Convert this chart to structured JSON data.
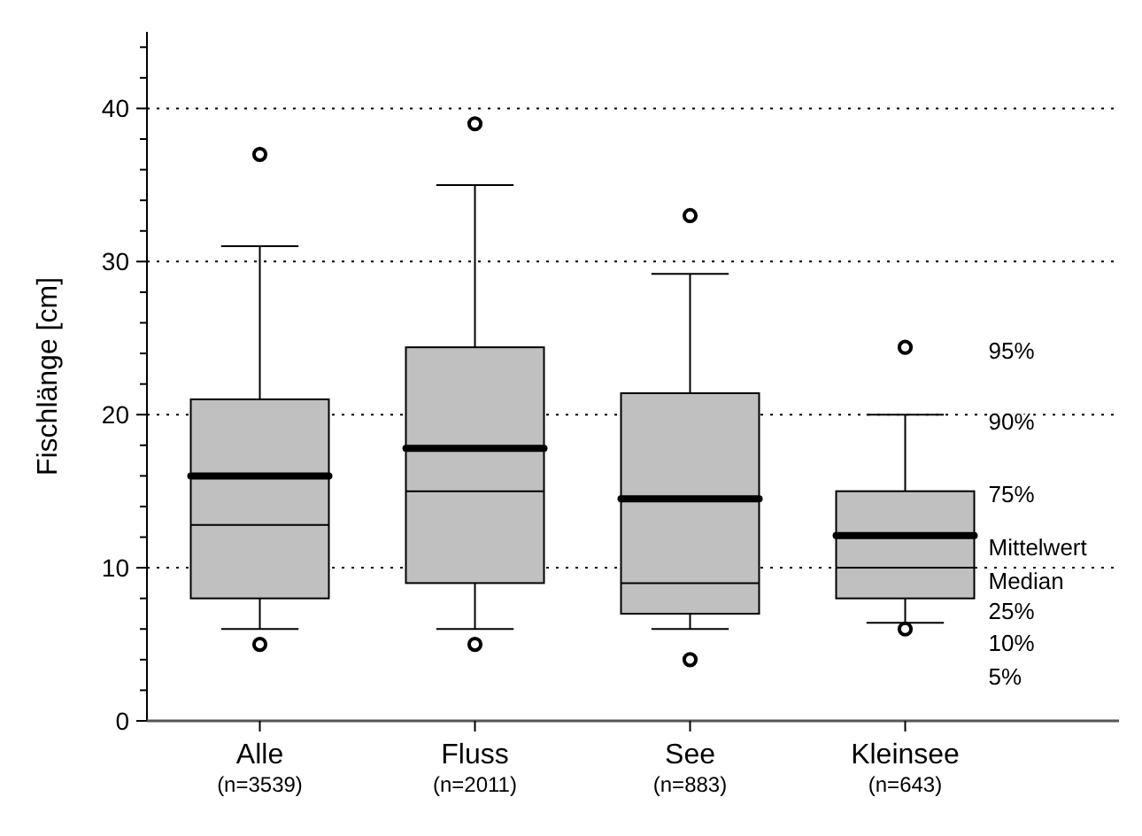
{
  "chart_data": {
    "type": "box",
    "ylabel": "Fischlänge [cm]",
    "categories": [
      "Alle\n(n=3539)",
      "Fluss\n(n=2011)",
      "See\n(n=883)",
      "Kleinsee\n(n=643)"
    ],
    "series": [
      {
        "color": "#c0c0c0",
        "boxes": [
          {
            "low": 6,
            "q1": 8,
            "median": 12.8,
            "q3": 21,
            "high": 31,
            "mean": 16,
            "outliers": [
              5,
              37
            ]
          },
          {
            "low": 6,
            "q1": 9,
            "median": 15,
            "q3": 24.4,
            "high": 35,
            "mean": 17.8,
            "outliers": [
              5,
              39
            ]
          },
          {
            "low": 6,
            "q1": 7,
            "median": 9,
            "q3": 21.4,
            "high": 29.2,
            "mean": 14.5,
            "outliers": [
              4,
              33
            ]
          },
          {
            "low": 6.4,
            "q1": 8,
            "median": 10,
            "q3": 15,
            "high": 20,
            "mean": 12.1,
            "outliers": [
              6,
              24.4
            ]
          }
        ]
      }
    ],
    "ylim": [
      0,
      45
    ],
    "yticks": [
      0,
      {
        "value": 2,
        "label": null
      },
      {
        "value": 4,
        "label": null
      },
      {
        "value": 6,
        "label": null
      },
      {
        "value": 8,
        "label": null
      },
      10,
      {
        "value": 12,
        "label": null
      },
      {
        "value": 14,
        "label": null
      },
      {
        "value": 16,
        "label": null
      },
      {
        "value": 18,
        "label": null
      },
      20,
      {
        "value": 22,
        "label": null
      },
      {
        "value": 24,
        "label": null
      },
      {
        "value": 26,
        "label": null
      },
      {
        "value": 28,
        "label": null
      },
      30,
      {
        "value": 32,
        "label": null
      },
      {
        "value": 34,
        "label": null
      },
      {
        "value": 36,
        "label": null
      },
      {
        "value": 38,
        "label": null
      },
      40,
      {
        "value": 42,
        "label": null
      },
      {
        "value": 44,
        "label": null
      }
    ],
    "grid": "y",
    "annotations": [
      "95%",
      "90%",
      "75%",
      "Mittelwert",
      "Median",
      "25%",
      "10%",
      "5%"
    ]
  }
}
